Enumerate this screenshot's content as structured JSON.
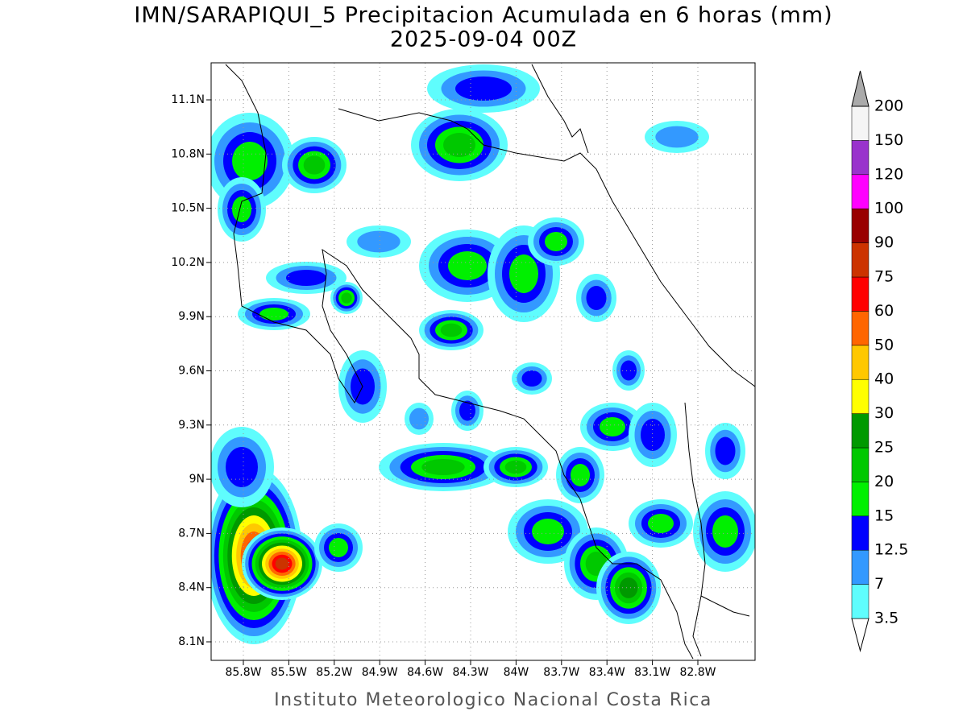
{
  "header": {
    "title": "IMN/SARAPIQUI_5 Precipitacion Acumulada en 6 horas (mm)",
    "subtitle": "2025-09-04 00Z"
  },
  "map": {
    "lat_ticks": [
      "11.1N",
      "10.8N",
      "10.5N",
      "10.2N",
      "9.9N",
      "9.6N",
      "9.3N",
      "9N",
      "8.7N",
      "8.4N",
      "8.1N"
    ],
    "lon_ticks": [
      "85.8W",
      "85.5W",
      "85.2W",
      "84.9W",
      "84.6W",
      "84.3W",
      "84W",
      "83.7W",
      "83.4W",
      "83.1W",
      "82.8W"
    ]
  },
  "colorbar": {
    "levels": [
      "3.5",
      "7",
      "12.5",
      "15",
      "20",
      "25",
      "30",
      "40",
      "50",
      "60",
      "75",
      "90",
      "100",
      "120",
      "150",
      "200"
    ],
    "colors": [
      "#ffffff",
      "#5ffdfd",
      "#3399ff",
      "#0000ff",
      "#00f000",
      "#00c800",
      "#009900",
      "#ffff00",
      "#ffc800",
      "#ff6600",
      "#ff0000",
      "#cc3300",
      "#990000",
      "#ff00ff",
      "#9933cc",
      "#f5f5f5",
      "#aaaaaa"
    ]
  },
  "footer": "Instituto Meteorologico Nacional Costa Rica"
}
